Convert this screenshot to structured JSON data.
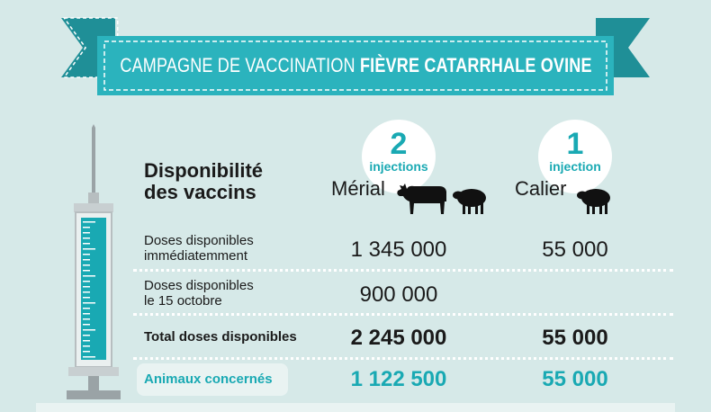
{
  "banner": {
    "title_light": "CAMPAGNE DE VACCINATION",
    "title_bold": "FIÈVRE CATARRHALE OVINE"
  },
  "heading": {
    "line1": "Disponibilité",
    "line2": "des vaccins"
  },
  "columns": [
    {
      "name": "Mérial",
      "injections_count": "2",
      "injections_label": "injections",
      "animals": [
        "cow-icon",
        "sheep-icon"
      ]
    },
    {
      "name": "Calier",
      "injections_count": "1",
      "injections_label": "injection",
      "animals": [
        "sheep-icon"
      ]
    }
  ],
  "rows": [
    {
      "label_line1": "Doses disponibles",
      "label_line2": "immédiatemment",
      "merial": "1 345 000",
      "calier": "55 000"
    },
    {
      "label_line1": "Doses disponibles",
      "label_line2": "le 15 octobre",
      "merial": "900 000",
      "calier": ""
    },
    {
      "label": "Total doses disponibles",
      "merial": "2 245 000",
      "calier": "55 000"
    },
    {
      "label": "Animaux concernés",
      "merial": "1 122 500",
      "calier": "55 000"
    }
  ],
  "colors": {
    "background": "#d6e9e8",
    "teal": "#19a9b3",
    "banner": "#2bb3bd",
    "banner_dark": "#1f8f97",
    "text": "#1a1a1a"
  },
  "icons": [
    "syringe-icon",
    "cow-icon",
    "sheep-icon"
  ]
}
